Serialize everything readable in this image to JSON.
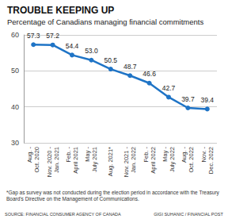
{
  "chart_data": {
    "type": "line",
    "title": "TROUBLE KEEPING UP",
    "subtitle": "Percentage of Canadians managing financial commitments",
    "categories": [
      "Aug. - Oct. 2020",
      "Nov. 2020 - Jan. 2021",
      "Feb. - April 2021",
      "May - July 2021",
      "Aug. 2021*",
      "Nov. 2021 - Jan. 2022",
      "Feb. - April 2022",
      "May - July 2022",
      "Aug. - Oct. 2022",
      "Nov. - Dec. 2022"
    ],
    "values": [
      57.3,
      57.2,
      54.4,
      53.0,
      50.5,
      48.7,
      46.6,
      42.7,
      39.7,
      39.4
    ],
    "value_labels": [
      "57.3",
      "57.2",
      "54.4",
      "53.0",
      "50.5",
      "48.7",
      "46.6",
      "42.7",
      "39.7",
      "39.4"
    ],
    "color": "#1f74c6",
    "ylim": [
      30,
      60
    ],
    "yticks": [
      30,
      40,
      50,
      60
    ],
    "grid": true,
    "data_labels": true,
    "marker": "circle",
    "annotations": [
      "*Gap as survey was not conducted during the election period in accordance with the Treasury Board's Directive on the Management of Communications."
    ],
    "source": "SOURCE: FINANCIAL CONSUMER AGENCY OF CANADA",
    "credit": "GIGI SUHANIC / FINANCIAL POST"
  }
}
